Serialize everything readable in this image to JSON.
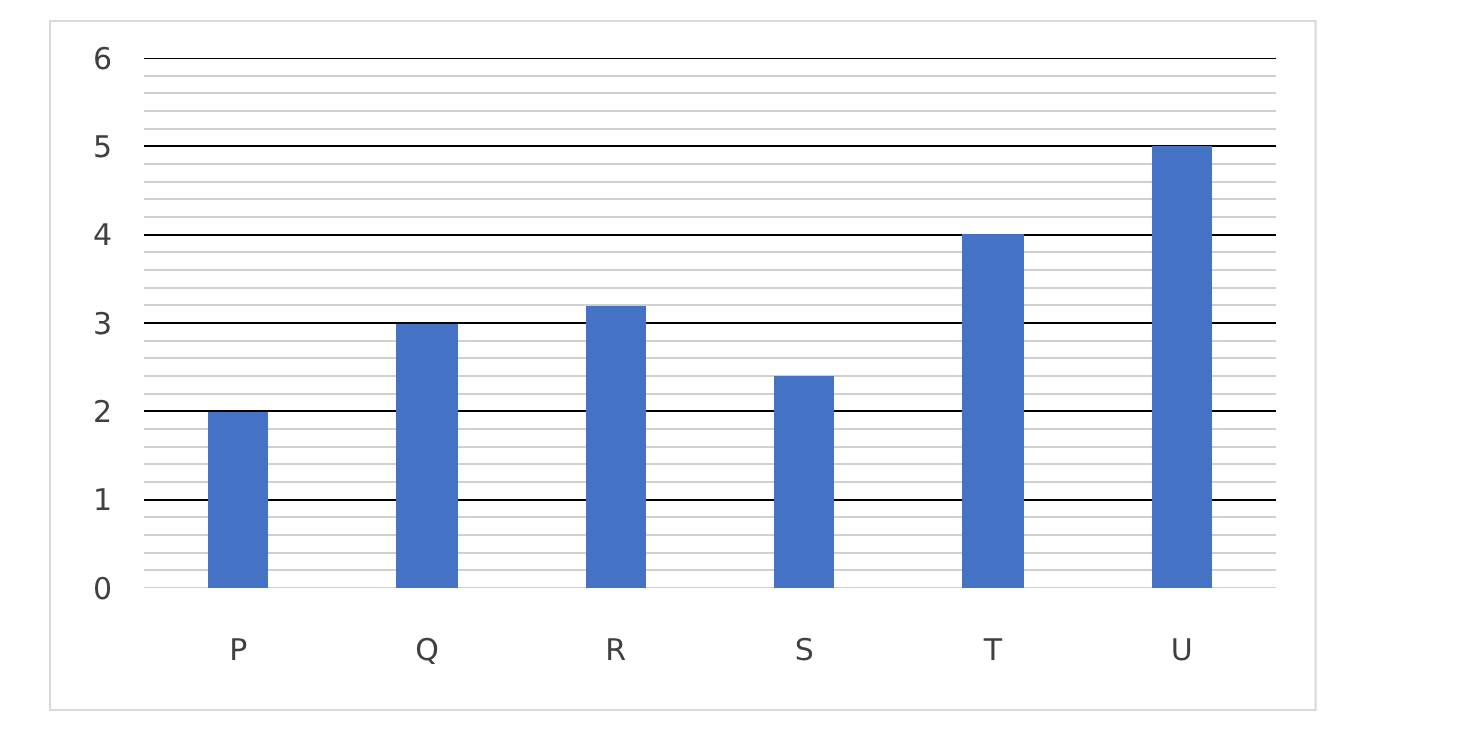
{
  "chart_data": {
    "type": "bar",
    "categories": [
      "P",
      "Q",
      "R",
      "S",
      "T",
      "U"
    ],
    "values": [
      2,
      3,
      3.2,
      2.4,
      4,
      5
    ],
    "color": "#4472c4",
    "ylim": [
      0,
      6
    ],
    "yticks": [
      0,
      1,
      2,
      3,
      4,
      5,
      6
    ],
    "grid": "y"
  }
}
